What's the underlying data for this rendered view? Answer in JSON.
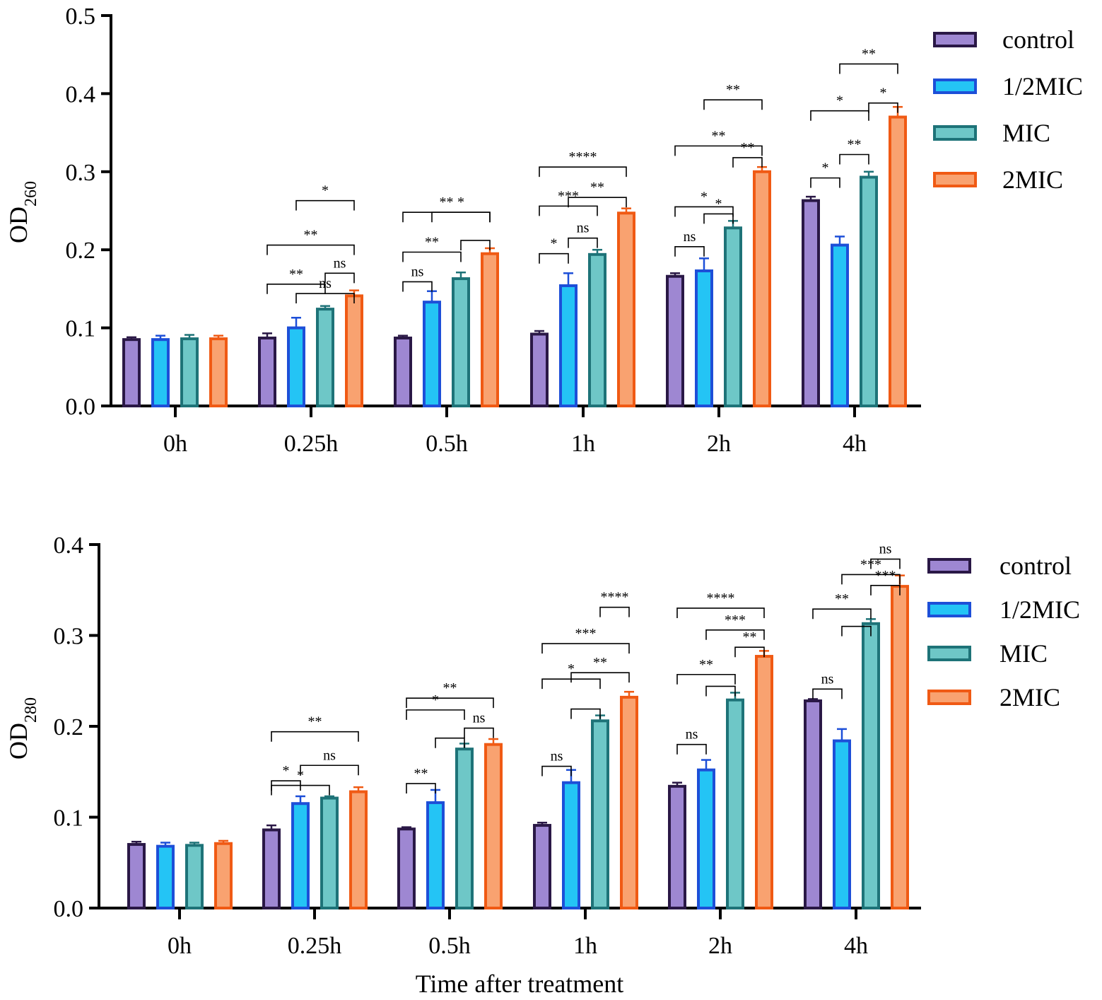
{
  "x_axis_title": "Time after treatment",
  "colors": {
    "control": {
      "fill": "#9E87D2",
      "stroke": "#2A1846"
    },
    "half_mic": {
      "fill": "#24C4F5",
      "stroke": "#1D4FD8"
    },
    "mic": {
      "fill": "#6EC7C7",
      "stroke": "#1E7378"
    },
    "two_mic": {
      "fill": "#F9A270",
      "stroke": "#F05A14"
    }
  },
  "chart_data": [
    {
      "type": "bar",
      "ylabel": "OD",
      "ylabel_sub": "260",
      "ylim": [
        0,
        0.5
      ],
      "yticks": [
        "0.0",
        "0.1",
        "0.2",
        "0.3",
        "0.4",
        "0.5"
      ],
      "categories": [
        "0h",
        "0.25h",
        "0.5h",
        "1h",
        "2h",
        "4h"
      ],
      "legend_position": "top-right",
      "series": [
        {
          "name": "control",
          "values": [
            0.085,
            0.087,
            0.087,
            0.092,
            0.166,
            0.263
          ],
          "errors": [
            0.003,
            0.006,
            0.003,
            0.004,
            0.004,
            0.005
          ]
        },
        {
          "name": "1/2MIC",
          "values": [
            0.085,
            0.1,
            0.133,
            0.154,
            0.173,
            0.206
          ],
          "errors": [
            0.005,
            0.013,
            0.014,
            0.016,
            0.016,
            0.011
          ]
        },
        {
          "name": "MIC",
          "values": [
            0.086,
            0.124,
            0.163,
            0.194,
            0.228,
            0.293
          ],
          "errors": [
            0.005,
            0.004,
            0.008,
            0.006,
            0.009,
            0.007
          ]
        },
        {
          "name": "2MIC",
          "values": [
            0.086,
            0.141,
            0.195,
            0.247,
            0.3,
            0.37
          ],
          "errors": [
            0.004,
            0.007,
            0.007,
            0.006,
            0.006,
            0.013
          ]
        }
      ],
      "significance": [
        {
          "group": 1,
          "from": 2,
          "to": 3,
          "level": 0.17,
          "label": "ns"
        },
        {
          "group": 1,
          "from": 1,
          "to": 3,
          "level": 0.144,
          "label": "ns"
        },
        {
          "group": 1,
          "from": 0,
          "to": 2,
          "level": 0.156,
          "label": "**"
        },
        {
          "group": 1,
          "from": 0,
          "to": 3,
          "level": 0.206,
          "label": "**"
        },
        {
          "group": 1,
          "from": 1,
          "to": 3,
          "level": 0.263,
          "label": "*"
        },
        {
          "group": 2,
          "from": 0,
          "to": 1,
          "level": 0.159,
          "label": "ns"
        },
        {
          "group": 2,
          "from": 2,
          "to": 3,
          "level": 0.212,
          "label": ""
        },
        {
          "group": 2,
          "from": 1,
          "to": 3,
          "level": 0.248,
          "label": "*"
        },
        {
          "group": 2,
          "from": 0,
          "to": 2,
          "level": 0.197,
          "label": "**"
        },
        {
          "group": 2,
          "from": 0,
          "to": 3,
          "level": 0.248,
          "label": "**"
        },
        {
          "group": 3,
          "from": 0,
          "to": 1,
          "level": 0.195,
          "label": "*"
        },
        {
          "group": 3,
          "from": 1,
          "to": 2,
          "level": 0.215,
          "label": "ns"
        },
        {
          "group": 3,
          "from": 0,
          "to": 2,
          "level": 0.256,
          "label": "***"
        },
        {
          "group": 3,
          "from": 1,
          "to": 3,
          "level": 0.267,
          "label": "**"
        },
        {
          "group": 3,
          "from": 0,
          "to": 3,
          "level": 0.306,
          "label": "****"
        },
        {
          "group": 4,
          "from": 0,
          "to": 1,
          "level": 0.204,
          "label": "ns"
        },
        {
          "group": 4,
          "from": 1,
          "to": 2,
          "level": 0.246,
          "label": "*"
        },
        {
          "group": 4,
          "from": 0,
          "to": 2,
          "level": 0.255,
          "label": "*"
        },
        {
          "group": 4,
          "from": 2,
          "to": 3,
          "level": 0.318,
          "label": "**"
        },
        {
          "group": 4,
          "from": 0,
          "to": 3,
          "level": 0.333,
          "label": "**"
        },
        {
          "group": 4,
          "from": 1,
          "to": 3,
          "level": 0.392,
          "label": "**"
        },
        {
          "group": 5,
          "from": 0,
          "to": 1,
          "level": 0.292,
          "label": "*"
        },
        {
          "group": 5,
          "from": 1,
          "to": 2,
          "level": 0.322,
          "label": "**"
        },
        {
          "group": 5,
          "from": 0,
          "to": 2,
          "level": 0.378,
          "label": "*"
        },
        {
          "group": 5,
          "from": 2,
          "to": 3,
          "level": 0.388,
          "label": "*"
        },
        {
          "group": 5,
          "from": 1,
          "to": 3,
          "level": 0.438,
          "label": "**"
        }
      ]
    },
    {
      "type": "bar",
      "ylabel": "OD",
      "ylabel_sub": "280",
      "ylim": [
        0,
        0.4
      ],
      "yticks": [
        "0.0",
        "0.1",
        "0.2",
        "0.3",
        "0.4"
      ],
      "categories": [
        "0h",
        "0.25h",
        "0.5h",
        "1h",
        "2h",
        "4h"
      ],
      "legend_position": "top-right",
      "series": [
        {
          "name": "control",
          "values": [
            0.07,
            0.086,
            0.087,
            0.091,
            0.134,
            0.228
          ],
          "errors": [
            0.003,
            0.005,
            0.002,
            0.003,
            0.004,
            0.002
          ]
        },
        {
          "name": "1/2MIC",
          "values": [
            0.068,
            0.115,
            0.116,
            0.138,
            0.152,
            0.184
          ],
          "errors": [
            0.004,
            0.008,
            0.014,
            0.014,
            0.011,
            0.013
          ]
        },
        {
          "name": "MIC",
          "values": [
            0.069,
            0.121,
            0.175,
            0.206,
            0.229,
            0.313
          ],
          "errors": [
            0.003,
            0.002,
            0.006,
            0.006,
            0.008,
            0.005
          ]
        },
        {
          "name": "2MIC",
          "values": [
            0.071,
            0.128,
            0.18,
            0.232,
            0.277,
            0.354
          ],
          "errors": [
            0.003,
            0.005,
            0.006,
            0.006,
            0.006,
            0.012
          ]
        }
      ],
      "significance": [
        {
          "group": 1,
          "from": 0,
          "to": 1,
          "level": 0.14,
          "label": "*"
        },
        {
          "group": 1,
          "from": 0,
          "to": 2,
          "level": 0.135,
          "label": "*"
        },
        {
          "group": 1,
          "from": 1,
          "to": 3,
          "level": 0.157,
          "label": "ns"
        },
        {
          "group": 1,
          "from": 0,
          "to": 3,
          "level": 0.194,
          "label": "**"
        },
        {
          "group": 2,
          "from": 0,
          "to": 1,
          "level": 0.137,
          "label": "**"
        },
        {
          "group": 2,
          "from": 1,
          "to": 2,
          "level": 0.187,
          "label": ""
        },
        {
          "group": 2,
          "from": 2,
          "to": 3,
          "level": 0.198,
          "label": "ns"
        },
        {
          "group": 2,
          "from": 0,
          "to": 2,
          "level": 0.218,
          "label": "*"
        },
        {
          "group": 2,
          "from": 0,
          "to": 3,
          "level": 0.231,
          "label": "**"
        },
        {
          "group": 3,
          "from": 0,
          "to": 1,
          "level": 0.156,
          "label": "ns"
        },
        {
          "group": 3,
          "from": 1,
          "to": 2,
          "level": 0.219,
          "label": ""
        },
        {
          "group": 3,
          "from": 0,
          "to": 2,
          "level": 0.252,
          "label": "*"
        },
        {
          "group": 3,
          "from": 1,
          "to": 3,
          "level": 0.259,
          "label": "**"
        },
        {
          "group": 3,
          "from": 0,
          "to": 3,
          "level": 0.291,
          "label": "***"
        },
        {
          "group": 3,
          "from": 2,
          "to": 3,
          "level": 0.331,
          "label": "****"
        },
        {
          "group": 4,
          "from": 0,
          "to": 1,
          "level": 0.18,
          "label": "ns"
        },
        {
          "group": 4,
          "from": 1,
          "to": 2,
          "level": 0.244,
          "label": ""
        },
        {
          "group": 4,
          "from": 0,
          "to": 2,
          "level": 0.257,
          "label": "**"
        },
        {
          "group": 4,
          "from": 2,
          "to": 3,
          "level": 0.287,
          "label": "**"
        },
        {
          "group": 4,
          "from": 1,
          "to": 3,
          "level": 0.306,
          "label": "***"
        },
        {
          "group": 4,
          "from": 0,
          "to": 3,
          "level": 0.33,
          "label": "****"
        },
        {
          "group": 5,
          "from": 0,
          "to": 1,
          "level": 0.241,
          "label": "ns"
        },
        {
          "group": 5,
          "from": 1,
          "to": 2,
          "level": 0.31,
          "label": ""
        },
        {
          "group": 5,
          "from": 0,
          "to": 2,
          "level": 0.329,
          "label": "**"
        },
        {
          "group": 5,
          "from": 2,
          "to": 3,
          "level": 0.355,
          "label": "***"
        },
        {
          "group": 5,
          "from": 1,
          "to": 3,
          "level": 0.367,
          "label": "***"
        },
        {
          "group": 5,
          "from": 2,
          "to": 3,
          "level": 0.384,
          "label": "ns"
        }
      ]
    }
  ]
}
